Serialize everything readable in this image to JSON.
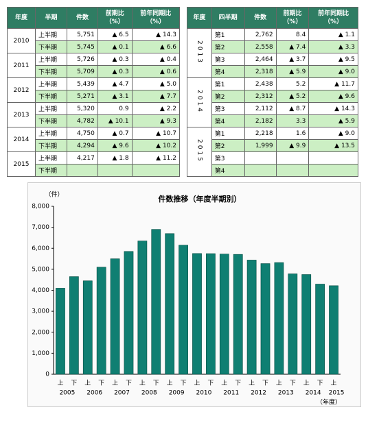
{
  "table1": {
    "headers": [
      "年度",
      "半期",
      "件数",
      "前期比\n（%）",
      "前年同期比\n（%）"
    ],
    "groups": [
      {
        "year": "2010",
        "rows": [
          [
            "上半期",
            "5,751",
            "▲ 6.5",
            "▲ 14.3"
          ],
          [
            "下半期",
            "5,745",
            "▲ 0.1",
            "▲ 6.6"
          ]
        ]
      },
      {
        "year": "2011",
        "rows": [
          [
            "上半期",
            "5,726",
            "▲ 0.3",
            "▲ 0.4"
          ],
          [
            "下半期",
            "5,709",
            "▲ 0.3",
            "▲ 0.6"
          ]
        ]
      },
      {
        "year": "2012",
        "rows": [
          [
            "上半期",
            "5,439",
            "▲ 4.7",
            "▲ 5.0"
          ],
          [
            "下半期",
            "5,271",
            "▲ 3.1",
            "▲ 7.7"
          ]
        ]
      },
      {
        "year": "2013",
        "rows": [
          [
            "上半期",
            "5,320",
            "0.9",
            "▲ 2.2"
          ],
          [
            "下半期",
            "4,782",
            "▲ 10.1",
            "▲ 9.3"
          ]
        ]
      },
      {
        "year": "2014",
        "rows": [
          [
            "上半期",
            "4,750",
            "▲ 0.7",
            "▲ 10.7"
          ],
          [
            "下半期",
            "4,294",
            "▲ 9.6",
            "▲ 10.2"
          ]
        ]
      },
      {
        "year": "2015",
        "rows": [
          [
            "上半期",
            "4,217",
            "▲ 1.8",
            "▲ 11.2"
          ],
          [
            "下半期"
          ]
        ]
      }
    ]
  },
  "table2": {
    "headers": [
      "年度",
      "四半期",
      "件数",
      "前期比\n（%）",
      "前年同期比\n（%）"
    ],
    "groups": [
      {
        "year": "2013",
        "rows": [
          [
            "第1",
            "2,762",
            "8.4",
            "▲ 1.1"
          ],
          [
            "第2",
            "2,558",
            "▲ 7.4",
            "▲ 3.3"
          ],
          [
            "第3",
            "2,464",
            "▲ 3.7",
            "▲ 9.5"
          ],
          [
            "第4",
            "2,318",
            "▲ 5.9",
            "▲ 9.0"
          ]
        ]
      },
      {
        "year": "2014",
        "rows": [
          [
            "第1",
            "2,438",
            "5.2",
            "▲ 11.7"
          ],
          [
            "第2",
            "2,312",
            "▲ 5.2",
            "▲ 9.6"
          ],
          [
            "第3",
            "2,112",
            "▲ 8.7",
            "▲ 14.3"
          ],
          [
            "第4",
            "2,182",
            "3.3",
            "▲ 5.9"
          ]
        ]
      },
      {
        "year": "2015",
        "rows": [
          [
            "第1",
            "2,218",
            "1.6",
            "▲ 9.0"
          ],
          [
            "第2",
            "1,999",
            "▲ 9.9",
            "▲ 13.5"
          ],
          [
            "第3"
          ],
          [
            "第4"
          ]
        ]
      }
    ]
  },
  "chart_data": {
    "type": "bar",
    "title": "件数推移（年度半期別）",
    "y_label": "（件）",
    "x_label": "（年度）",
    "categories": [
      "上",
      "下",
      "上",
      "下",
      "上",
      "下",
      "上",
      "下",
      "上",
      "下",
      "上",
      "下",
      "上",
      "下",
      "上",
      "下",
      "上",
      "下",
      "上",
      "下",
      "上"
    ],
    "groups": [
      "2005",
      "2006",
      "2007",
      "2008",
      "2009",
      "2010",
      "2011",
      "2012",
      "2013",
      "2014",
      "2015"
    ],
    "values": [
      4100,
      4650,
      4450,
      5100,
      5500,
      5850,
      6350,
      6900,
      6700,
      6150,
      5751,
      5745,
      5726,
      5709,
      5439,
      5271,
      5320,
      4782,
      4750,
      4294,
      4217
    ],
    "color": "#0f7f72",
    "ylim": [
      0,
      8000
    ],
    "yticks": [
      0,
      {
        "value": 1000,
        "label": "1,000"
      },
      {
        "value": 2000,
        "label": "2,000"
      },
      {
        "value": 3000,
        "label": "3,000"
      },
      {
        "value": 4000,
        "label": "4,000"
      },
      {
        "value": 5000,
        "label": "5,000"
      },
      {
        "value": 6000,
        "label": "6,000"
      },
      {
        "value": 7000,
        "label": "7,000"
      },
      {
        "value": 8000,
        "label": "8,000"
      }
    ],
    "grid": false
  }
}
